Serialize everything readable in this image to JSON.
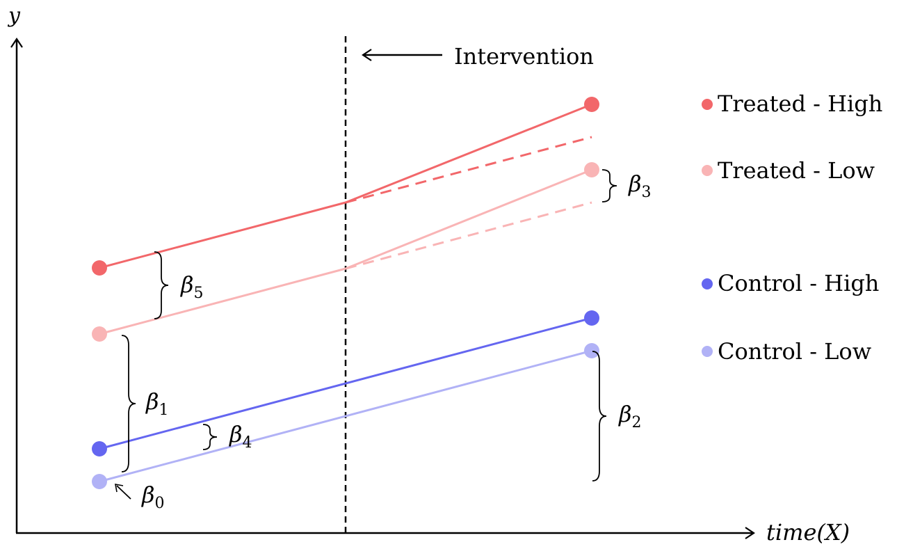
{
  "axes": {
    "y_label": "y",
    "x_label": "time(X)"
  },
  "intervention": {
    "label": "Intervention"
  },
  "legend": [
    {
      "label": "Treated - High",
      "color": "#f2676a"
    },
    {
      "label": "Treated - Low",
      "color": "#f9b4b5"
    },
    {
      "label": "Control - High",
      "color": "#6466f0"
    },
    {
      "label": "Control - Low",
      "color": "#b1b2f6"
    }
  ],
  "betas": [
    {
      "symbol": "β",
      "sub": "0"
    },
    {
      "symbol": "β",
      "sub": "1"
    },
    {
      "symbol": "β",
      "sub": "2"
    },
    {
      "symbol": "β",
      "sub": "3"
    },
    {
      "symbol": "β",
      "sub": "4"
    },
    {
      "symbol": "β",
      "sub": "5"
    }
  ]
}
